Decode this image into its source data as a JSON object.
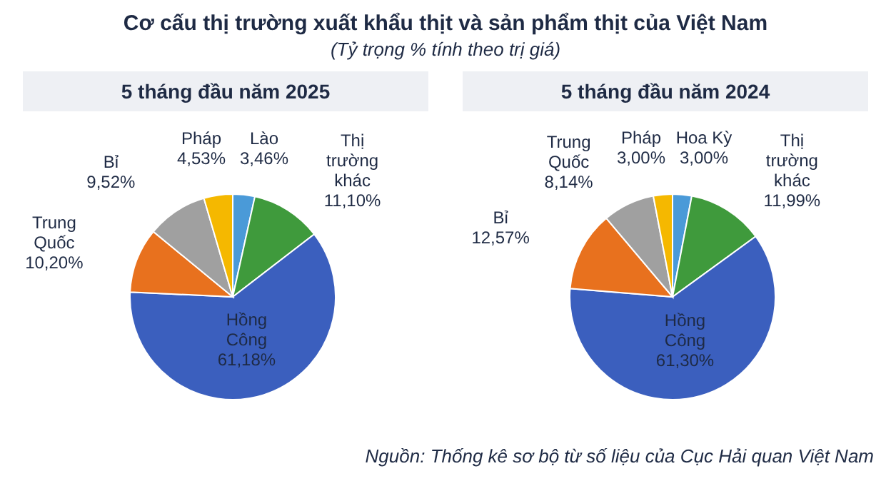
{
  "chart_data": [
    {
      "type": "other",
      "title": "Cơ cấu thị trường xuất khẩu thịt và sản phẩm thịt của Việt Nam",
      "subtitle": "(Tỷ trọng % tính theo trị giá)",
      "annotations": [
        "Nguồn: Thống kê sơ bộ từ số liệu của Cục Hải quan Việt Nam"
      ]
    },
    {
      "type": "pie",
      "title": "5 tháng đầu năm 2025",
      "categories": [
        "Lào",
        "Thị trường khác",
        "Hồng Công",
        "Trung Quốc",
        "Bỉ",
        "Pháp"
      ],
      "values": [
        3.46,
        11.1,
        61.18,
        10.2,
        9.52,
        4.53
      ],
      "value_labels": [
        "3,46%",
        "11,10%",
        "61,18%",
        "10,20%",
        "9,52%",
        "4,53%"
      ],
      "colors": [
        "#4a9ad8",
        "#3f9a3c",
        "#3b5fbe",
        "#e8711e",
        "#a0a0a0",
        "#f5b800"
      ],
      "legend": false
    },
    {
      "type": "pie",
      "title": "5 tháng đầu năm 2024",
      "categories": [
        "Hoa Kỳ",
        "Thị trường khác",
        "Hồng Công",
        "Bỉ",
        "Trung Quốc",
        "Pháp"
      ],
      "values": [
        3.0,
        11.99,
        61.3,
        12.57,
        8.14,
        3.0
      ],
      "value_labels": [
        "3,00%",
        "11,99%",
        "61,30%",
        "12,57%",
        "8,14%",
        "3,00%"
      ],
      "colors": [
        "#4a9ad8",
        "#3f9a3c",
        "#3b5fbe",
        "#e8711e",
        "#a0a0a0",
        "#f5b800"
      ],
      "legend": false
    }
  ]
}
